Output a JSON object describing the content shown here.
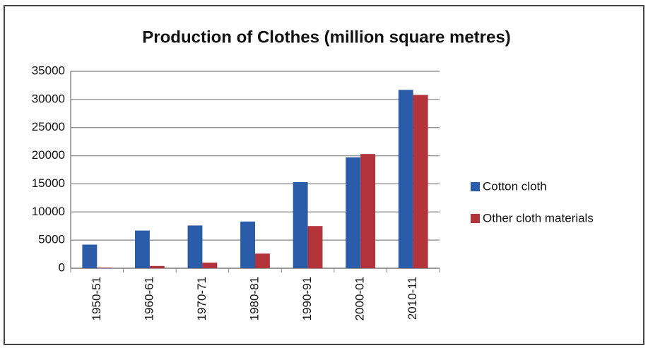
{
  "chart_data": {
    "type": "bar",
    "title": "Production of Clothes (million square metres)",
    "categories": [
      "1950-51",
      "1960-61",
      "1970-71",
      "1980-81",
      "1990-91",
      "2000-01",
      "2010-11"
    ],
    "series": [
      {
        "name": "Cotton cloth",
        "color": "#2a5caa",
        "values": [
          4200,
          6700,
          7600,
          8300,
          15300,
          19700,
          31700
        ]
      },
      {
        "name": "Other cloth materials",
        "color": "#b2343a",
        "values": [
          100,
          400,
          1000,
          2600,
          7500,
          20300,
          30800
        ]
      }
    ],
    "ylim": [
      0,
      35000
    ],
    "yticks": [
      0,
      5000,
      10000,
      15000,
      20000,
      25000,
      30000,
      35000
    ],
    "grid": true,
    "legend": "right"
  }
}
